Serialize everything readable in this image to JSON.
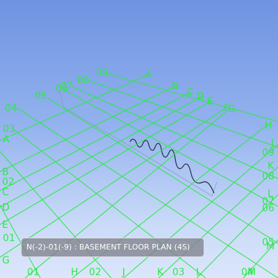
{
  "viewer": {
    "status_label": "N(-2)-01(-9) : BASEMENT FLOOR PLAN (4S)",
    "grid_color": "#2ee84a",
    "sky_top_color": "#6f93e2",
    "sky_bottom_color": "#dbe6fb"
  },
  "grid_labels": {
    "A_top": "A",
    "B_top": "B",
    "C_top": "C",
    "D_top": "D",
    "E_top": "E",
    "F_top": "F",
    "G_top": "G",
    "n09_top": "09",
    "n08_top": "08",
    "n07_top": "07",
    "n06_top": "06",
    "n05_top": "05",
    "n04_top": "04",
    "n03_left": "03",
    "A_left": "A",
    "B_left": "B",
    "n02_left": "02",
    "C_left": "C",
    "D_left": "D",
    "E_left": "E",
    "n01_left": "01",
    "G_left": "G",
    "H_right": "H",
    "J_right": "J",
    "n09_right": "09",
    "K_right": "K",
    "n08_right": "08",
    "L_right": "L",
    "n07_right": "07",
    "n06_right": "06",
    "n05_right": "05",
    "M_right": "M",
    "n01_bottom": "01",
    "H_bottom": "H",
    "n02_bottom": "02",
    "J_bottom": "J",
    "K_bottom": "K",
    "n03_bottom": "03",
    "L_bottom": "L",
    "n04_bottom": "04",
    "M_bottom": "M"
  }
}
